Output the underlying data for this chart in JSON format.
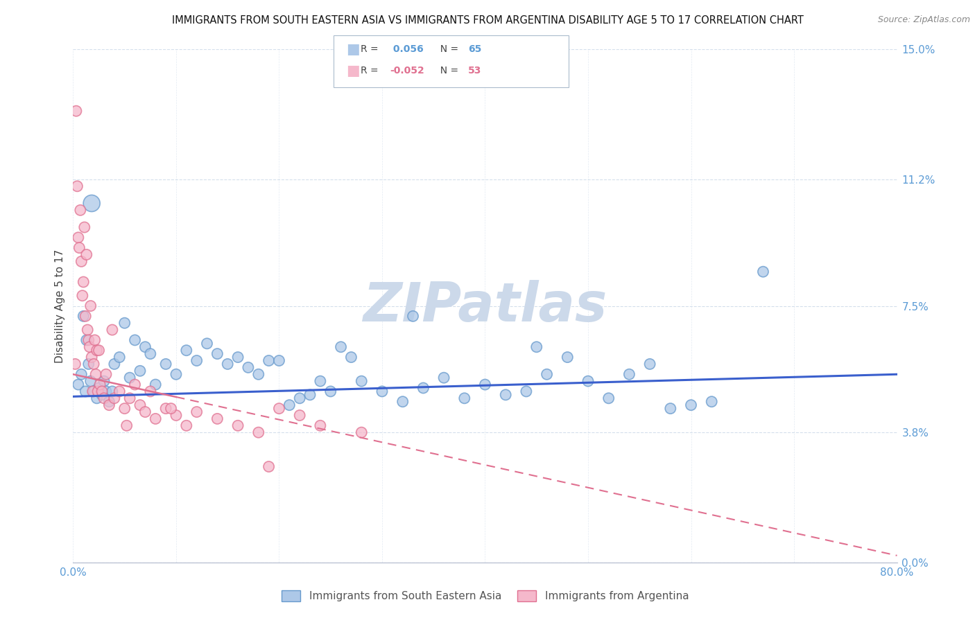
{
  "title": "IMMIGRANTS FROM SOUTH EASTERN ASIA VS IMMIGRANTS FROM ARGENTINA DISABILITY AGE 5 TO 17 CORRELATION CHART",
  "source": "Source: ZipAtlas.com",
  "ylabel": "Disability Age 5 to 17",
  "yticks": [
    0.0,
    3.8,
    7.5,
    11.2,
    15.0
  ],
  "ytick_labels": [
    "0.0%",
    "3.8%",
    "7.5%",
    "11.2%",
    "15.0%"
  ],
  "xlim": [
    0.0,
    80.0
  ],
  "ylim": [
    0.0,
    15.0
  ],
  "series1_label": "Immigrants from South Eastern Asia",
  "series1_R": "0.056",
  "series1_N": "65",
  "series1_color": "#adc8e8",
  "series1_edge_color": "#6699cc",
  "series2_label": "Immigrants from Argentina",
  "series2_R": "-0.052",
  "series2_N": "53",
  "series2_color": "#f5b8cb",
  "series2_edge_color": "#e07090",
  "trendline1_color": "#3a5fcd",
  "trendline2_color": "#e07090",
  "watermark": "ZIPatlas",
  "watermark_color": "#ccd9ea",
  "background_color": "#ffffff",
  "axis_label_color": "#5b9bd5",
  "grid_color": "#d0dcea",
  "legend_R_color": "#5b9bd5",
  "series1_x": [
    0.5,
    0.8,
    1.0,
    1.2,
    1.3,
    1.5,
    1.7,
    2.0,
    2.3,
    2.5,
    2.8,
    3.0,
    3.2,
    3.5,
    4.0,
    4.5,
    5.0,
    5.5,
    6.0,
    6.5,
    7.0,
    7.5,
    8.0,
    9.0,
    10.0,
    11.0,
    12.0,
    13.0,
    14.0,
    15.0,
    16.0,
    17.0,
    18.0,
    19.0,
    20.0,
    21.0,
    22.0,
    23.0,
    24.0,
    25.0,
    26.0,
    27.0,
    28.0,
    30.0,
    32.0,
    33.0,
    34.0,
    36.0,
    38.0,
    40.0,
    42.0,
    44.0,
    45.0,
    46.0,
    48.0,
    50.0,
    52.0,
    54.0,
    56.0,
    58.0,
    60.0,
    62.0,
    67.0,
    1.8,
    3.8
  ],
  "series1_y": [
    5.2,
    5.5,
    7.2,
    5.0,
    6.5,
    5.8,
    5.3,
    5.0,
    4.8,
    5.1,
    4.9,
    5.3,
    5.0,
    4.7,
    5.8,
    6.0,
    7.0,
    5.4,
    6.5,
    5.6,
    6.3,
    6.1,
    5.2,
    5.8,
    5.5,
    6.2,
    5.9,
    6.4,
    6.1,
    5.8,
    6.0,
    5.7,
    5.5,
    5.9,
    5.9,
    4.6,
    4.8,
    4.9,
    5.3,
    5.0,
    6.3,
    6.0,
    5.3,
    5.0,
    4.7,
    7.2,
    5.1,
    5.4,
    4.8,
    5.2,
    4.9,
    5.0,
    6.3,
    5.5,
    6.0,
    5.3,
    4.8,
    5.5,
    5.8,
    4.5,
    4.6,
    4.7,
    8.5,
    10.5,
    5.0
  ],
  "series1_sizes": [
    120,
    120,
    120,
    120,
    120,
    120,
    120,
    120,
    120,
    120,
    120,
    120,
    120,
    120,
    120,
    120,
    120,
    120,
    120,
    120,
    120,
    120,
    120,
    120,
    120,
    120,
    120,
    120,
    120,
    120,
    120,
    120,
    120,
    120,
    120,
    120,
    120,
    120,
    120,
    120,
    120,
    120,
    120,
    120,
    120,
    120,
    120,
    120,
    120,
    120,
    120,
    120,
    120,
    120,
    120,
    120,
    120,
    120,
    120,
    120,
    120,
    120,
    120,
    300,
    120
  ],
  "series2_x": [
    0.2,
    0.3,
    0.4,
    0.5,
    0.6,
    0.7,
    0.8,
    0.9,
    1.0,
    1.1,
    1.2,
    1.3,
    1.4,
    1.5,
    1.6,
    1.7,
    1.8,
    1.9,
    2.0,
    2.1,
    2.2,
    2.3,
    2.4,
    2.5,
    2.6,
    2.8,
    3.0,
    3.2,
    3.5,
    3.8,
    4.0,
    4.5,
    5.0,
    5.5,
    6.0,
    6.5,
    7.0,
    7.5,
    8.0,
    9.0,
    10.0,
    11.0,
    12.0,
    14.0,
    16.0,
    18.0,
    19.0,
    20.0,
    22.0,
    24.0,
    28.0,
    5.2,
    9.5
  ],
  "series2_y": [
    5.8,
    13.2,
    11.0,
    9.5,
    9.2,
    10.3,
    8.8,
    7.8,
    8.2,
    9.8,
    7.2,
    9.0,
    6.8,
    6.5,
    6.3,
    7.5,
    6.0,
    5.0,
    5.8,
    6.5,
    5.5,
    6.2,
    5.0,
    6.2,
    5.2,
    5.0,
    4.8,
    5.5,
    4.6,
    6.8,
    4.8,
    5.0,
    4.5,
    4.8,
    5.2,
    4.6,
    4.4,
    5.0,
    4.2,
    4.5,
    4.3,
    4.0,
    4.4,
    4.2,
    4.0,
    3.8,
    2.8,
    4.5,
    4.3,
    4.0,
    3.8,
    4.0,
    4.5
  ],
  "series2_sizes": [
    120,
    120,
    120,
    120,
    120,
    120,
    120,
    120,
    120,
    120,
    120,
    120,
    120,
    120,
    120,
    120,
    120,
    120,
    120,
    120,
    120,
    120,
    120,
    120,
    120,
    120,
    120,
    120,
    120,
    120,
    120,
    120,
    120,
    120,
    120,
    120,
    120,
    120,
    120,
    120,
    120,
    120,
    120,
    120,
    120,
    120,
    120,
    120,
    120,
    120,
    120,
    120,
    120
  ],
  "trend1_x0": 0.0,
  "trend1_y0": 4.85,
  "trend1_x1": 80.0,
  "trend1_y1": 5.5,
  "trend2_x0": 0.0,
  "trend2_y0": 5.5,
  "trend2_x1": 80.0,
  "trend2_y1": 0.2,
  "trend2_solid_end": 10.0
}
